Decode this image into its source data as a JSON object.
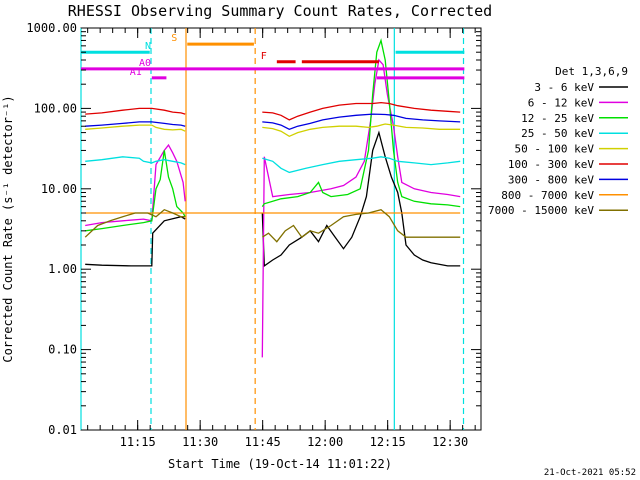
{
  "chart_data": {
    "type": "line",
    "title": "RHESSI Observing Summary Count Rates, Corrected",
    "xlabel": "Start Time (19-Oct-14 11:01:22)",
    "ylabel": "Corrected Count Rate (s⁻¹ detector⁻¹)",
    "x_range_minutes_from_start": [
      0,
      96
    ],
    "y_scale": "log",
    "ylim": [
      0.01,
      1000
    ],
    "x_ticks": [
      "11:15",
      "11:30",
      "11:45",
      "12:00",
      "12:15",
      "12:30"
    ],
    "x_tick_minutes": [
      13.6,
      28.6,
      43.6,
      58.6,
      73.6,
      88.6
    ],
    "y_ticks": [
      "0.01",
      "0.10",
      "1.00",
      "10.00",
      "100.00",
      "1000.00"
    ],
    "y_tick_values": [
      0.01,
      0.1,
      1,
      10,
      100,
      1000
    ],
    "legend_title": "Det 1,3,6,9",
    "legend_position": "right",
    "timestamp": "21-Oct-2021 05:52",
    "series": [
      {
        "name": "3 - 6 keV",
        "color": "#000000",
        "points": [
          [
            1,
            1.15
          ],
          [
            5,
            1.12
          ],
          [
            12,
            1.1
          ],
          [
            17,
            1.1
          ],
          [
            17.2,
            2.8
          ],
          [
            20,
            4
          ],
          [
            24,
            4.5
          ],
          [
            25,
            4.2
          ],
          [
            null,
            null
          ],
          [
            43.5,
            5
          ],
          [
            44,
            1.1
          ],
          [
            46,
            1.3
          ],
          [
            48,
            1.5
          ],
          [
            50,
            2
          ],
          [
            53,
            2.5
          ],
          [
            55,
            3
          ],
          [
            57,
            2.2
          ],
          [
            59,
            3.5
          ],
          [
            61,
            2.5
          ],
          [
            63,
            1.8
          ],
          [
            65,
            2.5
          ],
          [
            67,
            4.5
          ],
          [
            68.5,
            8
          ],
          [
            70,
            30
          ],
          [
            71.5,
            50
          ],
          [
            73,
            25
          ],
          [
            74.5,
            14
          ],
          [
            76,
            9
          ],
          [
            77,
            5
          ],
          [
            78,
            2
          ],
          [
            80,
            1.5
          ],
          [
            82,
            1.3
          ],
          [
            84,
            1.2
          ],
          [
            88,
            1.1
          ],
          [
            91,
            1.1
          ]
        ]
      },
      {
        "name": "6 - 12 keV",
        "color": "#e000e0",
        "points": [
          [
            1,
            3.5
          ],
          [
            5,
            3.8
          ],
          [
            10,
            4
          ],
          [
            15,
            4.2
          ],
          [
            17,
            4
          ],
          [
            18,
            20
          ],
          [
            20,
            30
          ],
          [
            21,
            35
          ],
          [
            22,
            28
          ],
          [
            23,
            22
          ],
          [
            24.5,
            12
          ],
          [
            25,
            7
          ],
          [
            null,
            null
          ],
          [
            43.5,
            0.08
          ],
          [
            44,
            25
          ],
          [
            46,
            8
          ],
          [
            50,
            8.5
          ],
          [
            55,
            9
          ],
          [
            60,
            10
          ],
          [
            63,
            11
          ],
          [
            66,
            14
          ],
          [
            68,
            22
          ],
          [
            69.5,
            70
          ],
          [
            70.5,
            200
          ],
          [
            71.5,
            400
          ],
          [
            72.5,
            350
          ],
          [
            73.5,
            150
          ],
          [
            75,
            60
          ],
          [
            76,
            25
          ],
          [
            77,
            12
          ],
          [
            80,
            10
          ],
          [
            84,
            9
          ],
          [
            88,
            8.5
          ],
          [
            91,
            8
          ]
        ]
      },
      {
        "name": "12 - 25 keV",
        "color": "#00e000",
        "points": [
          [
            1,
            3
          ],
          [
            5,
            3.2
          ],
          [
            10,
            3.5
          ],
          [
            15,
            3.8
          ],
          [
            17,
            4
          ],
          [
            18,
            10
          ],
          [
            19,
            13
          ],
          [
            20,
            30
          ],
          [
            21,
            14
          ],
          [
            22,
            10
          ],
          [
            23,
            6
          ],
          [
            24.5,
            5
          ],
          [
            25,
            4.5
          ],
          [
            null,
            null
          ],
          [
            43.5,
            6
          ],
          [
            44,
            6.5
          ],
          [
            48,
            7.5
          ],
          [
            52,
            8
          ],
          [
            55,
            9
          ],
          [
            57,
            12
          ],
          [
            58,
            9
          ],
          [
            60,
            8
          ],
          [
            64,
            8.5
          ],
          [
            67,
            10
          ],
          [
            69,
            30
          ],
          [
            70,
            150
          ],
          [
            71,
            500
          ],
          [
            72,
            700
          ],
          [
            73,
            400
          ],
          [
            74,
            120
          ],
          [
            75,
            30
          ],
          [
            76,
            12
          ],
          [
            77,
            8
          ],
          [
            80,
            7
          ],
          [
            84,
            6.5
          ],
          [
            88,
            6.3
          ],
          [
            91,
            6
          ]
        ]
      },
      {
        "name": "25 - 50 keV",
        "color": "#00e0e0",
        "points": [
          [
            1,
            22
          ],
          [
            5,
            23
          ],
          [
            10,
            25
          ],
          [
            14,
            24
          ],
          [
            15,
            22
          ],
          [
            17,
            21
          ],
          [
            18,
            22
          ],
          [
            20,
            23
          ],
          [
            22,
            22
          ],
          [
            24,
            21
          ],
          [
            25,
            20
          ],
          [
            null,
            null
          ],
          [
            43.5,
            24
          ],
          [
            46,
            22
          ],
          [
            48,
            18
          ],
          [
            50,
            16
          ],
          [
            54,
            18
          ],
          [
            58,
            20
          ],
          [
            62,
            22
          ],
          [
            66,
            23
          ],
          [
            70,
            24
          ],
          [
            72,
            25
          ],
          [
            74,
            24
          ],
          [
            76,
            22
          ],
          [
            80,
            21
          ],
          [
            84,
            20
          ],
          [
            88,
            21
          ],
          [
            91,
            22
          ]
        ]
      },
      {
        "name": "50 - 100 keV",
        "color": "#d0d000",
        "points": [
          [
            1,
            55
          ],
          [
            5,
            57
          ],
          [
            10,
            60
          ],
          [
            14,
            62
          ],
          [
            17,
            62
          ],
          [
            18,
            58
          ],
          [
            20,
            55
          ],
          [
            22,
            54
          ],
          [
            24,
            55
          ],
          [
            25,
            52
          ],
          [
            null,
            null
          ],
          [
            43.5,
            58
          ],
          [
            46,
            56
          ],
          [
            48,
            52
          ],
          [
            50,
            45
          ],
          [
            52,
            50
          ],
          [
            55,
            55
          ],
          [
            58,
            58
          ],
          [
            62,
            60
          ],
          [
            66,
            60
          ],
          [
            69,
            58
          ],
          [
            71,
            60
          ],
          [
            73,
            64
          ],
          [
            75,
            62
          ],
          [
            78,
            58
          ],
          [
            82,
            57
          ],
          [
            86,
            55
          ],
          [
            91,
            55
          ]
        ]
      },
      {
        "name": "100 - 300 keV",
        "color": "#e00000",
        "points": [
          [
            1,
            85
          ],
          [
            5,
            88
          ],
          [
            10,
            95
          ],
          [
            14,
            100
          ],
          [
            17,
            100
          ],
          [
            20,
            95
          ],
          [
            22,
            90
          ],
          [
            24,
            88
          ],
          [
            25,
            85
          ],
          [
            null,
            null
          ],
          [
            43.5,
            90
          ],
          [
            46,
            88
          ],
          [
            48,
            82
          ],
          [
            50,
            72
          ],
          [
            52,
            80
          ],
          [
            55,
            90
          ],
          [
            58,
            100
          ],
          [
            62,
            110
          ],
          [
            66,
            115
          ],
          [
            70,
            115
          ],
          [
            72,
            118
          ],
          [
            74,
            115
          ],
          [
            76,
            108
          ],
          [
            80,
            100
          ],
          [
            84,
            95
          ],
          [
            88,
            92
          ],
          [
            91,
            90
          ]
        ]
      },
      {
        "name": "300 - 800 keV",
        "color": "#0000e0",
        "points": [
          [
            1,
            60
          ],
          [
            5,
            62
          ],
          [
            10,
            65
          ],
          [
            14,
            68
          ],
          [
            17,
            68
          ],
          [
            20,
            65
          ],
          [
            22,
            63
          ],
          [
            24,
            62
          ],
          [
            25,
            60
          ],
          [
            null,
            null
          ],
          [
            43.5,
            68
          ],
          [
            46,
            66
          ],
          [
            48,
            62
          ],
          [
            50,
            55
          ],
          [
            52,
            60
          ],
          [
            55,
            65
          ],
          [
            58,
            72
          ],
          [
            62,
            78
          ],
          [
            66,
            82
          ],
          [
            70,
            85
          ],
          [
            73,
            84
          ],
          [
            75,
            82
          ],
          [
            78,
            75
          ],
          [
            82,
            72
          ],
          [
            86,
            70
          ],
          [
            91,
            68
          ]
        ]
      },
      {
        "name": "800 - 7000 keV",
        "color": "#ff9000",
        "points": [
          [
            1,
            5
          ],
          [
            91,
            5
          ]
        ]
      },
      {
        "name": "7000 - 15000 keV",
        "color": "#807000",
        "points": [
          [
            1,
            2.5
          ],
          [
            4,
            3.5
          ],
          [
            7,
            4
          ],
          [
            10,
            4.5
          ],
          [
            13,
            5
          ],
          [
            16,
            5
          ],
          [
            18,
            4.5
          ],
          [
            20,
            5.5
          ],
          [
            22,
            5
          ],
          [
            24,
            4.5
          ],
          [
            25,
            4.5
          ],
          [
            null,
            null
          ],
          [
            43.5,
            2.5
          ],
          [
            45,
            2.8
          ],
          [
            47,
            2.2
          ],
          [
            49,
            3
          ],
          [
            51,
            3.5
          ],
          [
            53,
            2.5
          ],
          [
            55,
            3
          ],
          [
            57,
            2.8
          ],
          [
            60,
            3.5
          ],
          [
            63,
            4.5
          ],
          [
            66,
            4.8
          ],
          [
            69,
            5
          ],
          [
            72,
            5.5
          ],
          [
            74,
            4.5
          ],
          [
            76,
            3
          ],
          [
            78,
            2.5
          ],
          [
            82,
            2.5
          ],
          [
            86,
            2.5
          ],
          [
            91,
            2.5
          ]
        ]
      }
    ],
    "vlines": [
      {
        "x": 0,
        "color": "#00e0e0",
        "style": "solid"
      },
      {
        "x": 16.8,
        "color": "#00e0e0",
        "style": "dashed"
      },
      {
        "x": 25.2,
        "color": "#ff9000",
        "style": "solid"
      },
      {
        "x": 41.8,
        "color": "#ff9000",
        "style": "dashed"
      },
      {
        "x": 75.2,
        "color": "#00e0e0",
        "style": "solid"
      },
      {
        "x": 91.8,
        "color": "#00e0e0",
        "style": "dashed"
      }
    ],
    "flag_bars": [
      {
        "label": "N",
        "color": "#00e0e0",
        "y": 500,
        "segments": [
          [
            -1,
            16.5
          ],
          [
            75.5,
            92
          ]
        ]
      },
      {
        "label": "S",
        "color": "#ff9000",
        "y": 630,
        "segments": [
          [
            25.5,
            41.5
          ]
        ]
      },
      {
        "label": "F",
        "color": "#e00000",
        "y": 380,
        "segments": [
          [
            47,
            51.5
          ],
          [
            53,
            71.5
          ]
        ]
      },
      {
        "label": "A0",
        "color": "#e000e0",
        "y": 310,
        "segments": [
          [
            -1,
            92
          ]
        ]
      },
      {
        "label": "A1",
        "color": "#e000e0",
        "y": 240,
        "segments": [
          [
            17,
            20.5
          ],
          [
            71,
            92
          ]
        ]
      }
    ]
  }
}
